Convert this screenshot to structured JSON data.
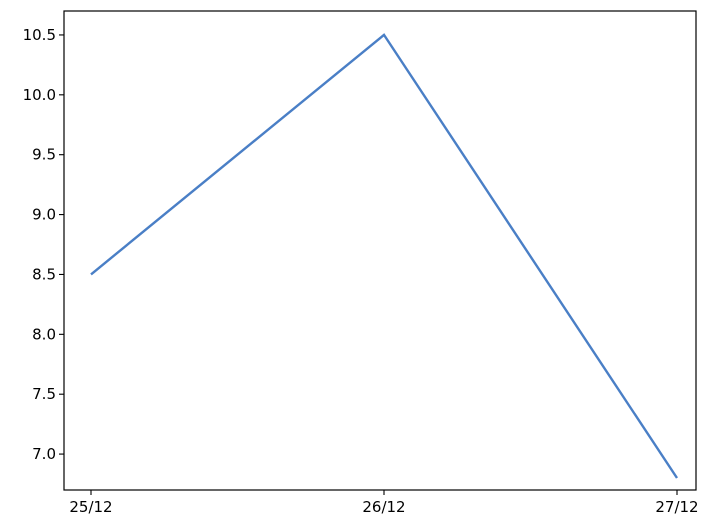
{
  "chart_data": {
    "type": "line",
    "title": "",
    "xlabel": "",
    "ylabel": "",
    "categories": [
      "25/12",
      "26/12",
      "27/12"
    ],
    "series": [
      {
        "values": [
          8.5,
          10.5,
          6.8
        ],
        "color": "#4a7fc6"
      }
    ],
    "ylim": [
      6.7,
      10.7
    ],
    "y_ticks": [
      "7.0",
      "7.5",
      "8.0",
      "8.5",
      "9.0",
      "9.5",
      "10.0",
      "10.5"
    ],
    "grid": false,
    "legend": "none"
  }
}
